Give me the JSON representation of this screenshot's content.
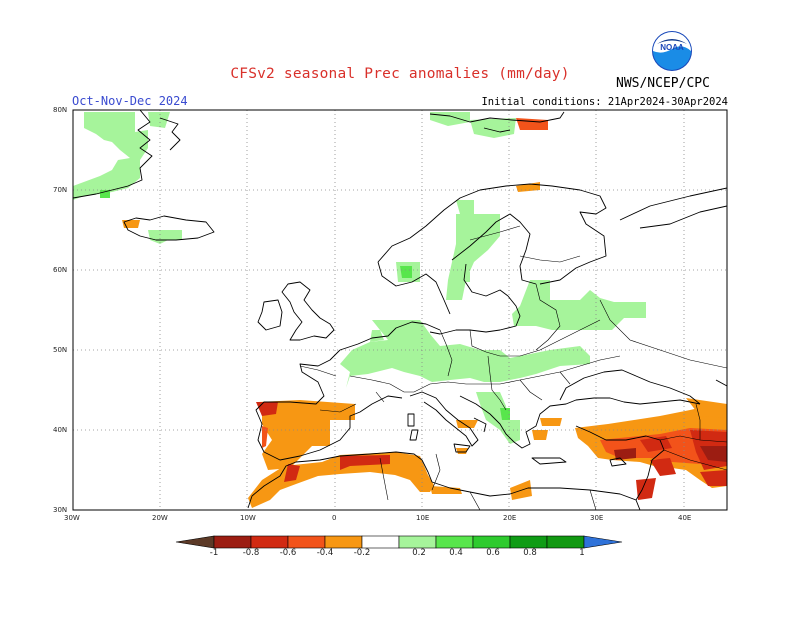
{
  "header": {
    "title": "CFSv2 seasonal Prec anomalies (mm/day)",
    "period": "Oct-Nov-Dec 2024",
    "initial_conditions": "Initial conditions: 21Apr2024-30Apr2024",
    "agency": "NWS/NCEP/CPC",
    "logo_text": "NOAA"
  },
  "map": {
    "lat_ticks": [
      "80N",
      "70N",
      "60N",
      "50N",
      "40N",
      "30N"
    ],
    "lon_ticks": [
      "30W",
      "20W",
      "10W",
      "0",
      "10E",
      "20E",
      "30E",
      "40E"
    ],
    "extent": {
      "lon": [
        -30,
        45
      ],
      "lat": [
        30,
        80
      ]
    },
    "grid": "dotted"
  },
  "legend": {
    "labels": [
      "-1",
      "-0.8",
      "-0.6",
      "-0.4",
      "-0.2",
      "0.2",
      "0.4",
      "0.6",
      "0.8",
      "1"
    ],
    "colors": [
      "#5c3a27",
      "#9c1d12",
      "#d12a12",
      "#f2531a",
      "#f79713",
      "#ffffff",
      "#a6f49b",
      "#58e64c",
      "#2ecb2e",
      "#0f9c15",
      "#2f72d9"
    ]
  },
  "colors": {
    "title": "#d9302a",
    "period": "#3a4bd0"
  }
}
